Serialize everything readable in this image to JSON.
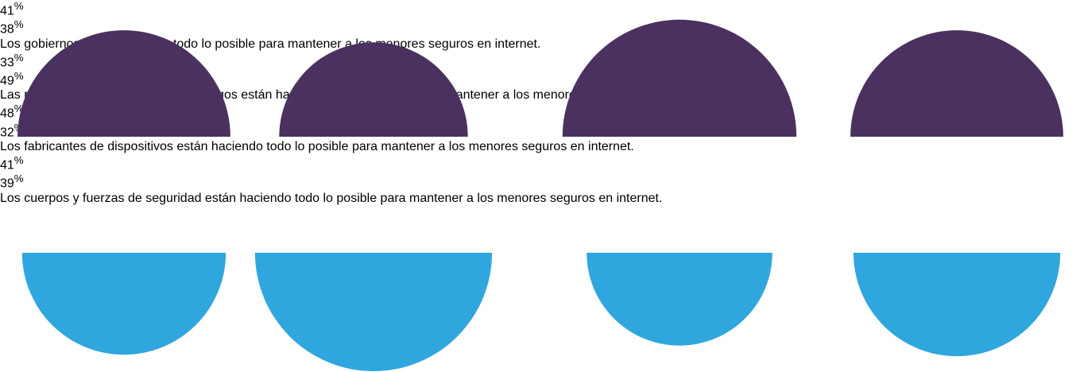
{
  "chart_data": {
    "type": "half-circle",
    "unit": "%",
    "categories": [
      "Los gobiernos están haciendo todo lo posible para mantener a los menores seguros en internet.",
      "Las redes sociales/ plataformas de juegos están haciendo todo lo posible para mantener a los menores seguros en internet.",
      "Los fabricantes de dispositivos están haciendo todo lo posible para mantener a los menores seguros en internet.",
      "Los cuerpos y fuerzas de seguridad están haciendo todo lo posible para mantener a los menores seguros en internet."
    ],
    "series": [
      {
        "color": "#4a3160",
        "values": [
          41,
          33,
          48,
          41
        ]
      },
      {
        "color": "#30a6de",
        "values": [
          38,
          49,
          32,
          39
        ]
      }
    ]
  }
}
